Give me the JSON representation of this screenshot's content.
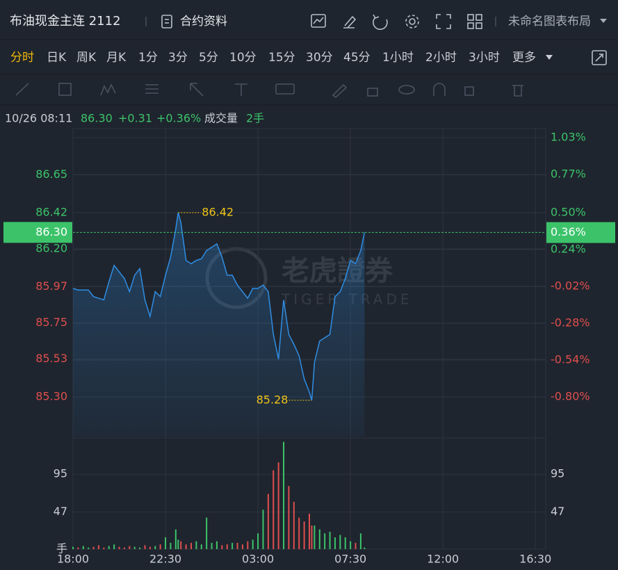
{
  "header": {
    "title": "布油现金主连 2112",
    "contract": "合约资料",
    "layout": "未命名图表布局"
  },
  "periods": {
    "items": [
      "分时",
      "日K",
      "周K",
      "月K",
      "1分",
      "3分",
      "5分",
      "10分",
      "15分",
      "30分",
      "45分",
      "1小时",
      "2小时",
      "3小时",
      "更多"
    ],
    "active": 0
  },
  "quote": {
    "time": "10/26 08:11",
    "price": "86.30",
    "change": "+0.31",
    "percent": "+0.36%",
    "volume_label": "成交量",
    "volume": "2手"
  },
  "watermark": {
    "cn": "老虎證券",
    "en": "TIGER TRADE"
  },
  "chart_data": {
    "type": "line",
    "color": "#2f8ee5",
    "up_color": "#3cc36a",
    "down_color": "#e04e4e",
    "grid": true,
    "x": [
      "18:00",
      "18:15",
      "18:30",
      "18:45",
      "19:00",
      "19:15",
      "19:30",
      "19:45",
      "20:00",
      "20:15",
      "20:30",
      "20:45",
      "21:00",
      "21:15",
      "21:30",
      "21:45",
      "22:00",
      "22:15",
      "22:30",
      "22:45",
      "23:00",
      "23:07",
      "23:15",
      "23:30",
      "23:45",
      "00:00",
      "00:15",
      "00:30",
      "00:45",
      "01:00",
      "01:15",
      "01:30",
      "01:45",
      "02:00",
      "02:15",
      "02:30",
      "02:45",
      "03:00",
      "03:15",
      "03:30",
      "03:45",
      "04:00",
      "04:15",
      "04:30",
      "04:45",
      "05:00",
      "05:15",
      "05:30",
      "05:37",
      "05:45",
      "06:00",
      "06:15",
      "06:30",
      "06:45",
      "07:00",
      "07:15",
      "07:30",
      "07:45",
      "08:00",
      "08:11"
    ],
    "values": [
      85.96,
      85.95,
      85.95,
      85.95,
      85.91,
      85.9,
      85.89,
      86.0,
      86.1,
      86.06,
      86.02,
      85.94,
      86.04,
      86.08,
      85.89,
      85.79,
      85.94,
      85.91,
      86.04,
      86.15,
      86.32,
      86.42,
      86.36,
      86.13,
      86.11,
      86.13,
      86.14,
      86.19,
      86.21,
      86.23,
      86.15,
      86.04,
      86.04,
      85.98,
      85.94,
      85.9,
      85.96,
      85.96,
      85.98,
      85.94,
      85.68,
      85.53,
      85.89,
      85.68,
      85.62,
      85.55,
      85.41,
      85.33,
      85.28,
      85.51,
      85.64,
      85.66,
      85.68,
      85.91,
      85.94,
      86.02,
      86.13,
      86.11,
      86.19,
      86.3
    ],
    "xlim": [
      "18:00",
      "17:00"
    ],
    "xticks": [
      "18:00",
      "22:30",
      "03:00",
      "07:30",
      "12:00",
      "16:30"
    ],
    "ylim": [
      85.06,
      86.88
    ],
    "yticks": [
      {
        "value": 85.3,
        "label": "85.30"
      },
      85.53,
      85.75,
      85.97,
      {
        "value": 86.2,
        "label": "86.20"
      },
      86.42,
      86.65
    ],
    "y2lim": [
      -1.08,
      1.035
    ],
    "y2ticks": [
      {
        "value": -0.8,
        "label": "-0.80%"
      },
      {
        "value": -0.54,
        "label": "-0.54%"
      },
      {
        "value": -0.28,
        "label": "-0.28%"
      },
      {
        "value": -0.02,
        "label": "-0.02%"
      },
      {
        "value": 0.24,
        "label": "0.24%"
      },
      {
        "value": 0.5,
        "label": "0.50%"
      },
      {
        "value": 0.77,
        "label": "0.77%"
      },
      {
        "value": 1.03,
        "label": "1.03%"
      }
    ],
    "high": 86.42,
    "low": 85.28,
    "last": {
      "value": 86.3,
      "label": "86.30"
    },
    "last_pct": {
      "value": 0.36,
      "label": "0.36%"
    },
    "volume": {
      "values": [
        3,
        2,
        4,
        2,
        3,
        5,
        2,
        4,
        6,
        3,
        2,
        4,
        3,
        2,
        5,
        3,
        4,
        6,
        15,
        8,
        25,
        12,
        10,
        6,
        8,
        10,
        6,
        40,
        8,
        10,
        5,
        6,
        8,
        8,
        6,
        10,
        12,
        20,
        50,
        70,
        100,
        110,
        136,
        80,
        60,
        40,
        35,
        45,
        30,
        30,
        25,
        20,
        22,
        15,
        18,
        15,
        10,
        8,
        20,
        2
      ],
      "ylim": [
        0,
        141
      ],
      "yticks": [
        {
          "value": 0,
          "label": "手"
        },
        47,
        95
      ],
      "y2ticks": [
        47,
        95
      ]
    }
  }
}
